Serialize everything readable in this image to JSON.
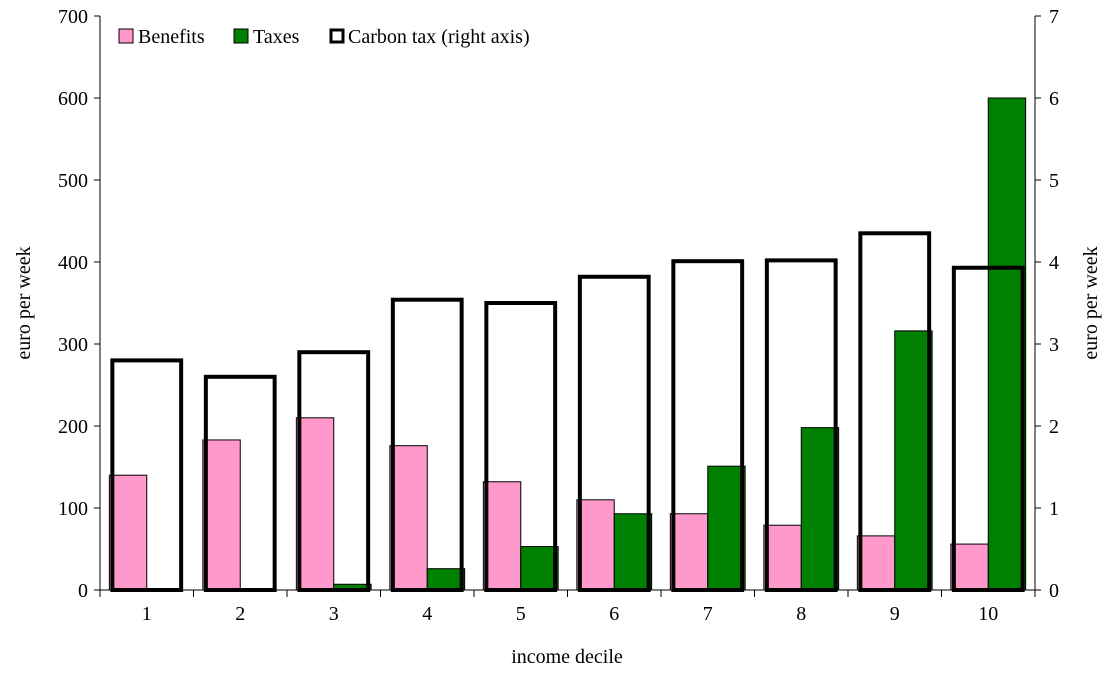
{
  "chart_data": {
    "type": "bar",
    "categories": [
      "1",
      "2",
      "3",
      "4",
      "5",
      "6",
      "7",
      "8",
      "9",
      "10"
    ],
    "series": [
      {
        "name": "Benefits",
        "axis": "left",
        "color": "#ff99cc",
        "values": [
          140,
          183,
          210,
          176,
          132,
          110,
          93,
          79,
          66,
          56
        ]
      },
      {
        "name": "Taxes",
        "axis": "left",
        "color": "#008000",
        "values": [
          0,
          0,
          7,
          26,
          53,
          93,
          151,
          198,
          316,
          600
        ]
      },
      {
        "name": "Carbon tax (right axis)",
        "axis": "right",
        "color": "#000000",
        "values": [
          2.8,
          2.6,
          2.9,
          3.54,
          3.5,
          3.82,
          4.01,
          4.02,
          4.35,
          3.93
        ]
      }
    ],
    "xlabel": "income decile",
    "ylabel": "euro per week",
    "y2label": "euro per week",
    "ylim": [
      0,
      700
    ],
    "y2lim": [
      0,
      7
    ],
    "yticks": [
      "0",
      "100",
      "200",
      "300",
      "400",
      "500",
      "600",
      "700"
    ],
    "y2ticks": [
      "0",
      "1",
      "2",
      "3",
      "4",
      "5",
      "6",
      "7"
    ],
    "grid": false,
    "legend": "top-left"
  }
}
